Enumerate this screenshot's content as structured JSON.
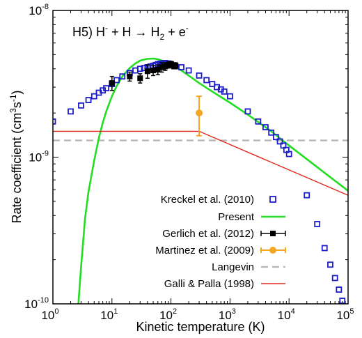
{
  "chart_data": {
    "type": "line",
    "annotation": "H5) H⁻ + H → H₂ + e⁻",
    "xlabel": "Kinetic temperature (K)",
    "ylabel": "Rate coefficient (cm³s⁻¹)",
    "xscale": "log",
    "yscale": "log",
    "xlim": [
      1,
      100000
    ],
    "ylim": [
      1e-10,
      1e-08
    ],
    "x_ticks": [
      {
        "value": 1,
        "mant": "10",
        "exp": "0"
      },
      {
        "value": 10,
        "mant": "10",
        "exp": "1"
      },
      {
        "value": 100,
        "mant": "10",
        "exp": "2"
      },
      {
        "value": 1000,
        "mant": "10",
        "exp": "3"
      },
      {
        "value": 10000,
        "mant": "10",
        "exp": "4"
      },
      {
        "value": 100000,
        "mant": "10",
        "exp": "5"
      }
    ],
    "y_ticks": [
      {
        "value": 1e-10,
        "mant": "10",
        "exp": "-10"
      },
      {
        "value": 1e-09,
        "mant": "10",
        "exp": "-9"
      },
      {
        "value": 1e-08,
        "mant": "10",
        "exp": "-8"
      }
    ],
    "legend_position": "bottom-right",
    "series": [
      {
        "name": "Kreckel et al. (2010)",
        "kind": "open-squares",
        "color": "#1c1cc8",
        "x": [
          1,
          2,
          3,
          4,
          5,
          6,
          7,
          8,
          10,
          12,
          15,
          20,
          25,
          30,
          35,
          40,
          45,
          50,
          55,
          60,
          65,
          70,
          75,
          80,
          90,
          100,
          150,
          200,
          300,
          400,
          500,
          600,
          700,
          800,
          1000,
          2000,
          3000,
          4000,
          5000,
          6000,
          7000,
          8000,
          9000,
          10000,
          20000,
          30000,
          40000,
          50000,
          60000,
          70000,
          80000
        ],
        "y": [
          1.75e-09,
          2.05e-09,
          2.25e-09,
          2.45e-09,
          2.6e-09,
          2.75e-09,
          2.85e-09,
          2.95e-09,
          3.15e-09,
          3.35e-09,
          3.55e-09,
          3.75e-09,
          3.9e-09,
          4e-09,
          4.05e-09,
          4.1e-09,
          4.15e-09,
          4.2e-09,
          4.25e-09,
          4.3e-09,
          4.33e-09,
          4.35e-09,
          4.37e-09,
          4.38e-09,
          4.35e-09,
          4.3e-09,
          4.1e-09,
          3.9e-09,
          3.6e-09,
          3.35e-09,
          3.15e-09,
          3e-09,
          2.9e-09,
          2.8e-09,
          2.6e-09,
          2.05e-09,
          1.75e-09,
          1.6e-09,
          1.47e-09,
          1.37e-09,
          1.28e-09,
          1.2e-09,
          1.12e-09,
          1.05e-09,
          5.5e-10,
          3.5e-10,
          2.4e-10,
          1.85e-10,
          1.5e-10,
          1.25e-10,
          1.05e-10
        ]
      },
      {
        "name": "Present",
        "kind": "line",
        "color": "#22dd22",
        "x": [
          2.7,
          3,
          3.5,
          4,
          5,
          6,
          7,
          8,
          10,
          12,
          15,
          20,
          25,
          30,
          40,
          50,
          60,
          70,
          80,
          100,
          150,
          200,
          300,
          500,
          1000,
          2000,
          5000,
          10000,
          20000,
          50000,
          100000
        ],
        "y": [
          1e-10,
          1.8e-10,
          3.8e-10,
          5.8e-10,
          9.5e-10,
          1.35e-09,
          1.72e-09,
          2.05e-09,
          2.6e-09,
          3.05e-09,
          3.55e-09,
          4.05e-09,
          4.35e-09,
          4.55e-09,
          4.68e-09,
          4.7e-09,
          4.65e-09,
          4.55e-09,
          4.45e-09,
          4.25e-09,
          3.9e-09,
          3.6e-09,
          3.2e-09,
          2.8e-09,
          2.35e-09,
          1.95e-09,
          1.5e-09,
          1.2e-09,
          9.7e-10,
          7.3e-10,
          5.9e-10
        ]
      },
      {
        "name": "Gerlich et al. (2012)",
        "kind": "filled-squares-errorbars",
        "color": "#000000",
        "x": [
          10,
          20,
          30,
          40,
          50,
          60,
          70,
          80,
          90,
          100,
          110,
          120
        ],
        "y": [
          3.2e-09,
          3.55e-09,
          3.45e-09,
          3.85e-09,
          3.9e-09,
          3.95e-09,
          4.1e-09,
          4.15e-09,
          4.25e-09,
          4.3e-09,
          4.2e-09,
          4.2e-09
        ],
        "yerr": [
          3.5e-10,
          2.5e-10,
          2.5e-10,
          4e-10,
          3e-10,
          3e-10,
          3e-10,
          2.5e-10,
          2e-10,
          2e-10,
          2e-10,
          2e-10
        ]
      },
      {
        "name": "Martinez et al. (2009)",
        "kind": "filled-circles-errorbars",
        "color": "#f5a623",
        "x": [
          300
        ],
        "y": [
          2e-09
        ],
        "ylo": [
          1.4e-09
        ],
        "yhi": [
          2.6e-09
        ]
      },
      {
        "name": "Langevin",
        "kind": "dashed-line",
        "color": "#b3b3b3",
        "x": [
          1,
          100000
        ],
        "y": [
          1.3e-09,
          1.3e-09
        ]
      },
      {
        "name": "Galli & Palla (1998)",
        "kind": "line",
        "color": "#e0281e",
        "x": [
          1,
          300,
          100000
        ],
        "y": [
          1.5e-09,
          1.5e-09,
          5.5e-10
        ]
      }
    ]
  }
}
